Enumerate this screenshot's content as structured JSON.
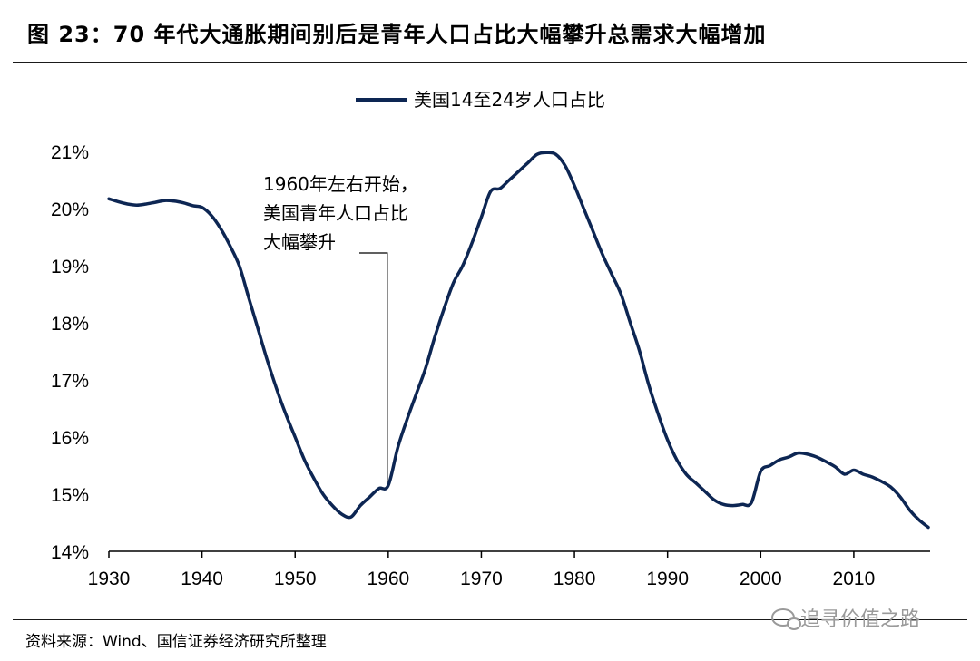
{
  "header": {
    "title": "图 23：70 年代大通胀期间别后是青年人口占比大幅攀升总需求大幅增加"
  },
  "footer": {
    "source": "资料来源：Wind、国信证券经济研究所整理",
    "watermark": "追寻价值之路"
  },
  "colors": {
    "series": "#0d2653",
    "axis": "#000000"
  },
  "chart_data": {
    "type": "line",
    "title": "",
    "xlabel": "",
    "ylabel": "",
    "xlim": [
      1930,
      2018
    ],
    "ylim": [
      14,
      21
    ],
    "x_ticks": [
      "1930",
      "1940",
      "1950",
      "1960",
      "1970",
      "1980",
      "1990",
      "2000",
      "2010"
    ],
    "y_ticks": [
      "14%",
      "15%",
      "16%",
      "17%",
      "18%",
      "19%",
      "20%",
      "21%"
    ],
    "grid": false,
    "legend": {
      "placement": "top-center",
      "entries": [
        "美国14至24岁人口占比"
      ]
    },
    "series": [
      {
        "name": "美国14至24岁人口占比",
        "x": [
          1930,
          1931,
          1932,
          1933,
          1934,
          1935,
          1936,
          1937,
          1938,
          1939,
          1940,
          1941,
          1942,
          1943,
          1944,
          1945,
          1946,
          1947,
          1948,
          1949,
          1950,
          1951,
          1952,
          1953,
          1954,
          1955,
          1956,
          1957,
          1958,
          1959,
          1960,
          1961,
          1962,
          1963,
          1964,
          1965,
          1966,
          1967,
          1968,
          1969,
          1970,
          1971,
          1972,
          1973,
          1974,
          1975,
          1976,
          1977,
          1978,
          1979,
          1980,
          1981,
          1982,
          1983,
          1984,
          1985,
          1986,
          1987,
          1988,
          1989,
          1990,
          1991,
          1992,
          1993,
          1994,
          1995,
          1996,
          1997,
          1998,
          1999,
          2000,
          2001,
          2002,
          2003,
          2004,
          2005,
          2006,
          2007,
          2008,
          2009,
          2010,
          2011,
          2012,
          2013,
          2014,
          2015,
          2016,
          2017,
          2018
        ],
        "values": [
          20.17,
          20.12,
          20.08,
          20.06,
          20.08,
          20.11,
          20.14,
          20.13,
          20.1,
          20.05,
          20.02,
          19.88,
          19.65,
          19.35,
          19.0,
          18.45,
          17.9,
          17.35,
          16.85,
          16.4,
          16.0,
          15.6,
          15.28,
          15.0,
          14.8,
          14.65,
          14.6,
          14.8,
          14.95,
          15.1,
          15.15,
          15.8,
          16.3,
          16.75,
          17.2,
          17.75,
          18.25,
          18.7,
          19.0,
          19.4,
          19.85,
          20.3,
          20.35,
          20.5,
          20.65,
          20.8,
          20.95,
          20.98,
          20.95,
          20.75,
          20.4,
          20.0,
          19.6,
          19.2,
          18.85,
          18.5,
          18.0,
          17.5,
          16.9,
          16.4,
          15.95,
          15.6,
          15.35,
          15.2,
          15.05,
          14.9,
          14.82,
          14.8,
          14.82,
          14.85,
          15.4,
          15.5,
          15.6,
          15.65,
          15.72,
          15.7,
          15.65,
          15.57,
          15.48,
          15.35,
          15.42,
          15.35,
          15.3,
          15.22,
          15.12,
          14.95,
          14.72,
          14.55,
          14.42
        ]
      }
    ],
    "annotations": [
      {
        "lines": [
          "1960年左右开始，",
          "美国青年人口占比",
          "大幅攀升"
        ],
        "x": 1960,
        "y": 15.15
      }
    ]
  }
}
